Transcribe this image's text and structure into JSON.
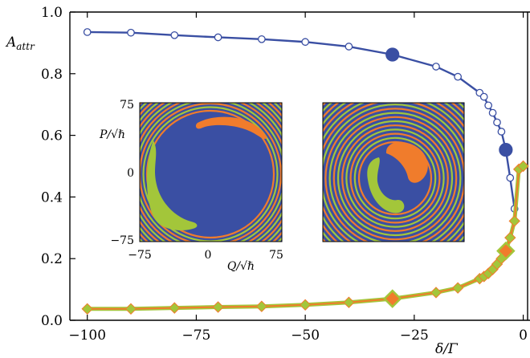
{
  "chart_data": {
    "type": "line",
    "xlabel": "δ/Γ",
    "ylabel": "A",
    "ylabel_sub": "attr",
    "xlim": [
      -104,
      1
    ],
    "ylim": [
      0.0,
      1.0
    ],
    "x_ticks": [
      -100,
      -75,
      -50,
      -25,
      0
    ],
    "x_tick_labels": [
      "−100",
      "−75",
      "−50",
      "−25",
      "0"
    ],
    "y_ticks": [
      0.0,
      0.2,
      0.4,
      0.6,
      0.8,
      1.0
    ],
    "y_tick_labels": [
      "0.0",
      "0.2",
      "0.4",
      "0.6",
      "0.8",
      "1.0"
    ],
    "grid": false,
    "series": [
      {
        "color": "#3a4fa3",
        "marker": "open-circle",
        "x": [
          -100,
          -90,
          -80,
          -70,
          -60,
          -50,
          -40,
          -30,
          -20,
          -15,
          -10,
          -9,
          -8,
          -7,
          -6,
          -5,
          -4,
          -3,
          -2
        ],
        "y": [
          0.935,
          0.933,
          0.925,
          0.918,
          0.912,
          0.903,
          0.888,
          0.862,
          0.823,
          0.79,
          0.738,
          0.725,
          0.697,
          0.673,
          0.642,
          0.612,
          0.553,
          0.462,
          0.362
        ],
        "highlight_x": [
          -30,
          -4
        ]
      },
      {
        "color": "#a3c63a",
        "fill": "#f07c2c",
        "marker": "diamond",
        "x": [
          -100,
          -90,
          -80,
          -70,
          -60,
          -50,
          -40,
          -30,
          -20,
          -15,
          -10,
          -9,
          -8,
          -7,
          -6,
          -5,
          -4,
          -3,
          -2,
          -1,
          0
        ],
        "y": [
          0.037,
          0.037,
          0.04,
          0.043,
          0.045,
          0.05,
          0.058,
          0.07,
          0.09,
          0.105,
          0.135,
          0.142,
          0.152,
          0.165,
          0.182,
          0.2,
          0.225,
          0.268,
          0.322,
          0.49,
          0.5
        ],
        "highlight_x": [
          -30,
          -4
        ]
      }
    ],
    "insets": [
      {
        "type": "heatmap",
        "xlabel": "Q/√ℏ",
        "ylabel": "P/√ℏ",
        "x_tick_labels": [
          "−75",
          "0",
          "75"
        ],
        "y_tick_labels": [
          "75",
          "0",
          "−75"
        ],
        "colors": {
          "background": "#3a4fa3",
          "basin_a": "#f07c2c",
          "basin_b": "#a3c63a"
        }
      },
      {
        "type": "heatmap",
        "colors": {
          "background": "#3a4fa3",
          "basin_a": "#f07c2c",
          "basin_b": "#a3c63a"
        }
      }
    ]
  }
}
